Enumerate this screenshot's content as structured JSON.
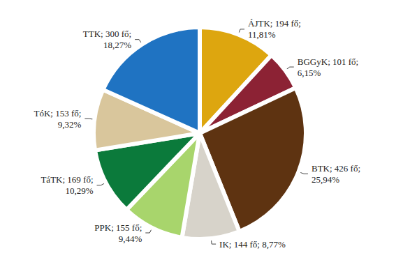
{
  "chart_data": {
    "type": "pie",
    "categories": [
      "ÁJTK",
      "BGGyK",
      "BTK",
      "IK",
      "PPK",
      "TáTK",
      "TóK",
      "TTK"
    ],
    "values": [
      194,
      101,
      426,
      144,
      155,
      169,
      153,
      300
    ],
    "value_labels": [
      "ÁJTK; 194 fő;\n11,81%",
      "BGGyK; 101 fő;\n6,15%",
      "BTK; 426 fő;\n25,94%",
      "IK; 144 fő; 8,77%",
      "PPK; 155 fő;\n9,44%",
      "TáTK; 169 fő;\n10,29%",
      "TóK; 153 fő;\n9,32%",
      "TTK; 300 fő;\n18,27%"
    ],
    "colors": [
      "#DDA60F",
      "#8C2234",
      "#5E3311",
      "#D7D3CA",
      "#A8D56C",
      "#0B7A3B",
      "#D9C69C",
      "#1F73C2"
    ],
    "data_labels": true
  }
}
